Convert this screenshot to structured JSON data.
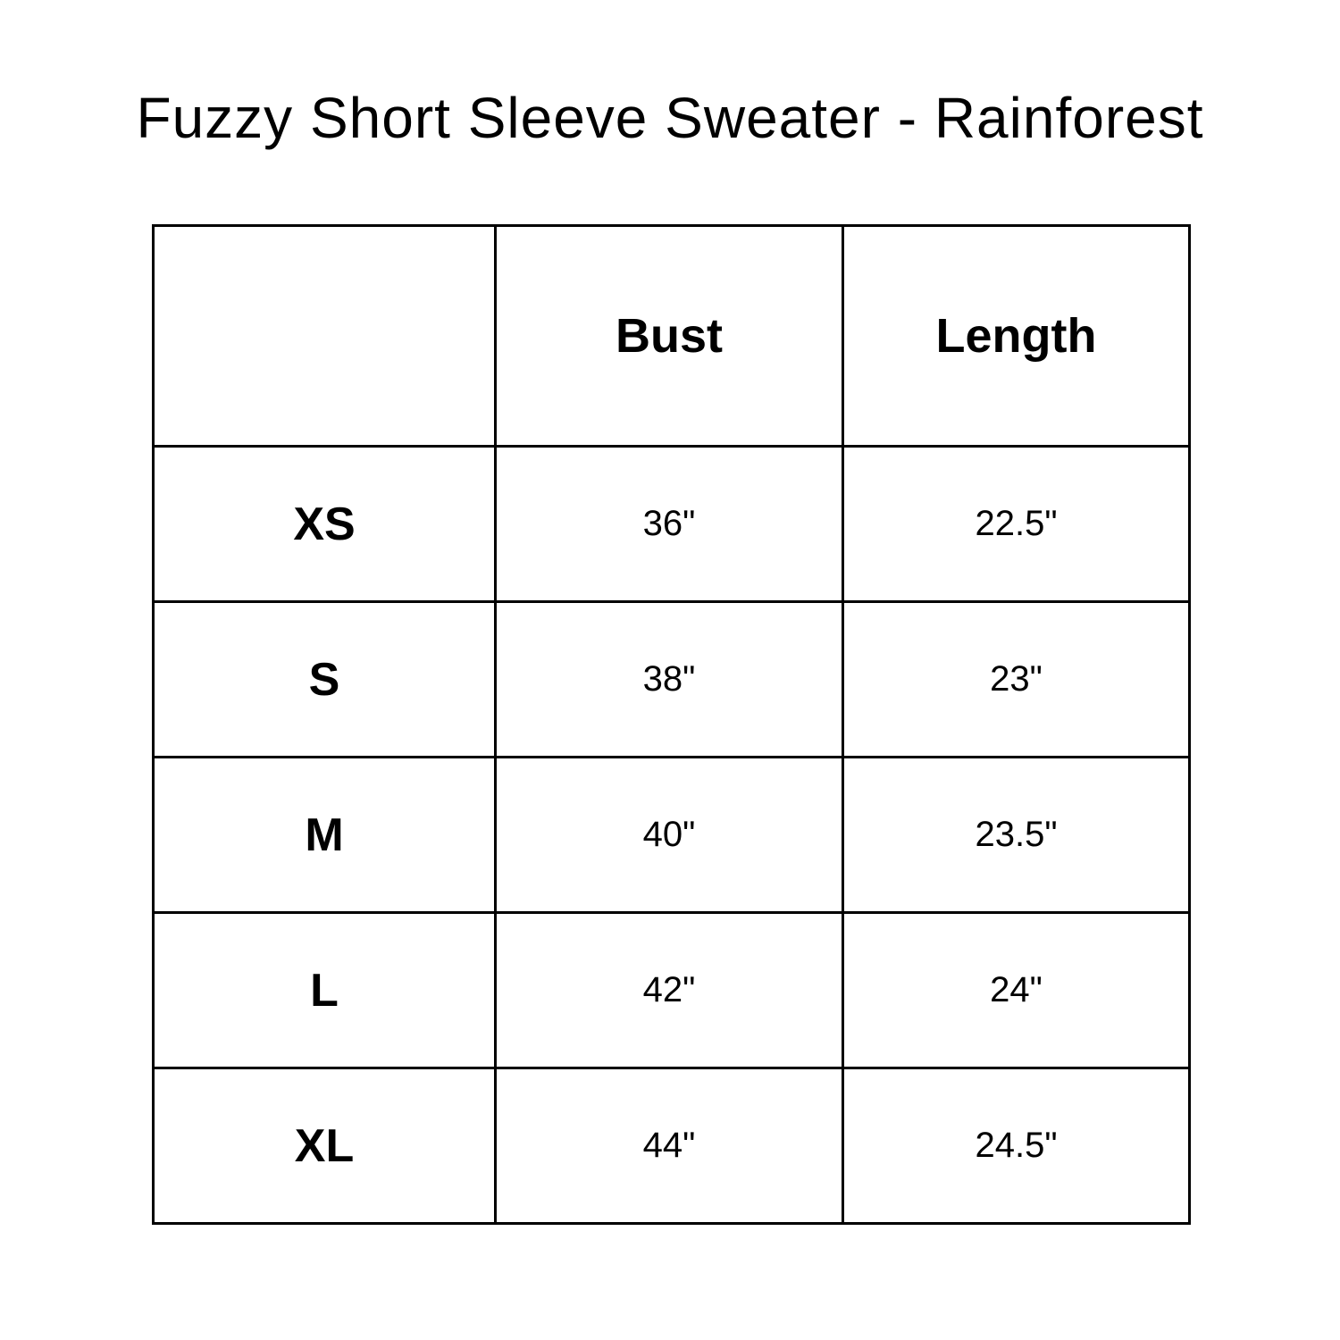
{
  "title": "Fuzzy Short Sleeve Sweater - Rainforest",
  "table": {
    "headers": [
      "",
      "Bust",
      "Length"
    ],
    "rows": [
      {
        "size": "XS",
        "bust": "36\"",
        "length": "22.5\""
      },
      {
        "size": "S",
        "bust": "38\"",
        "length": "23\""
      },
      {
        "size": "M",
        "bust": "40\"",
        "length": "23.5\""
      },
      {
        "size": "L",
        "bust": "42\"",
        "length": "24\""
      },
      {
        "size": "XL",
        "bust": "44\"",
        "length": "24.5\""
      }
    ]
  }
}
